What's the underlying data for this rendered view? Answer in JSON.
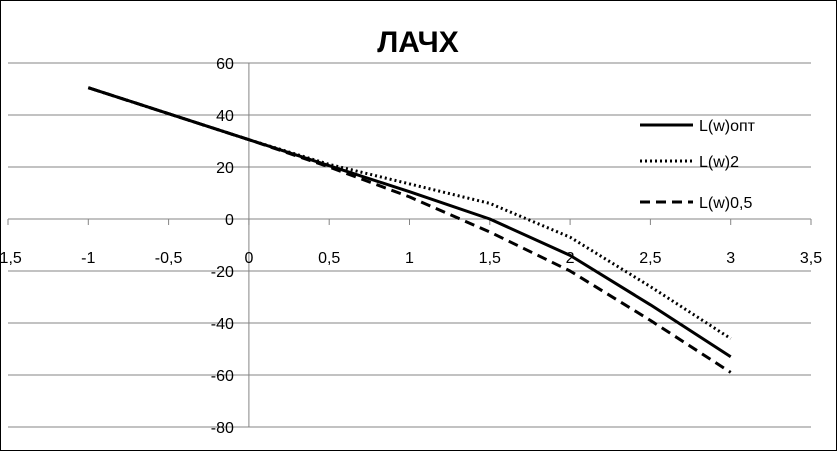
{
  "chart_data": {
    "type": "line",
    "title": "ЛАЧХ",
    "xlabel": "",
    "ylabel": "",
    "xlim": [
      -1.5,
      3.5
    ],
    "ylim": [
      -80,
      60
    ],
    "x_ticks": [
      -1.5,
      -1,
      -0.5,
      0,
      0.5,
      1,
      1.5,
      2,
      2.5,
      3,
      3.5
    ],
    "x_tick_labels": [
      "-1,5",
      "-1",
      "-0,5",
      "0",
      "0,5",
      "1",
      "1,5",
      "2",
      "2,5",
      "3",
      "3,5"
    ],
    "y_ticks": [
      -80,
      -60,
      -40,
      -20,
      0,
      20,
      40,
      60
    ],
    "y_tick_labels": [
      "-80",
      "-60",
      "-40",
      "-20",
      "0",
      "20",
      "40",
      "60"
    ],
    "grid": "horizontal",
    "legend_position": "right",
    "series": [
      {
        "name": "L(w)опт",
        "style": "solid",
        "color": "#000000",
        "x": [
          -1,
          -0.5,
          0,
          0.5,
          1,
          1.5,
          2,
          2.5,
          3
        ],
        "y": [
          50.5,
          40.5,
          30.5,
          20.5,
          10.5,
          0,
          -14,
          -33,
          -53
        ]
      },
      {
        "name": "L(w)2",
        "style": "dotted",
        "color": "#000000",
        "x": [
          -1,
          -0.5,
          0,
          0.5,
          1,
          1.5,
          2,
          2.5,
          3
        ],
        "y": [
          50.5,
          40.5,
          30.5,
          21,
          13.5,
          6,
          -7,
          -26,
          -46
        ]
      },
      {
        "name": "L(w)0,5",
        "style": "dashed",
        "color": "#000000",
        "x": [
          -1,
          -0.5,
          0,
          0.5,
          1,
          1.5,
          2,
          2.5,
          3
        ],
        "y": [
          50.5,
          40.5,
          30.5,
          20,
          8.5,
          -5,
          -20,
          -39,
          -59
        ]
      }
    ]
  }
}
